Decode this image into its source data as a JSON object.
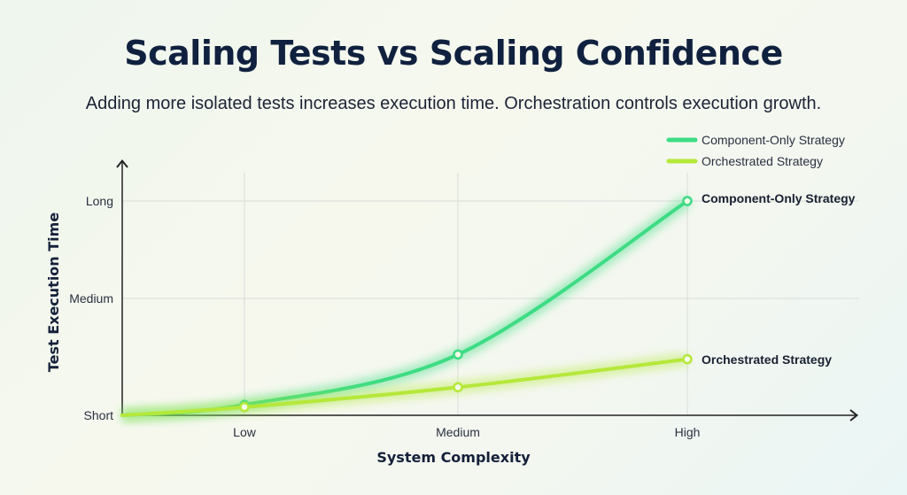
{
  "title": "Scaling Tests vs Scaling Confidence",
  "subtitle": "Adding more isolated tests increases execution time. Orchestration controls execution growth.",
  "chart_data": {
    "type": "line",
    "xlabel": "System Complexity",
    "ylabel": "Test Execution Time",
    "x_ticks": [
      "Low",
      "Medium",
      "High"
    ],
    "y_ticks": [
      "Short",
      "Medium",
      "Long"
    ],
    "x": [
      "origin",
      "Low",
      "Medium",
      "High"
    ],
    "grid": true,
    "legend": "top-right",
    "series": [
      {
        "name": "Component-Only Strategy",
        "color": "#3ddc84",
        "values": [
          0,
          0.09,
          0.52,
          2.0
        ],
        "end_label": "Component-Only Strategy"
      },
      {
        "name": "Orchestrated Strategy",
        "color": "#b5e83a",
        "values": [
          0,
          0.07,
          0.24,
          0.48
        ],
        "end_label": "Orchestrated Strategy"
      }
    ]
  }
}
